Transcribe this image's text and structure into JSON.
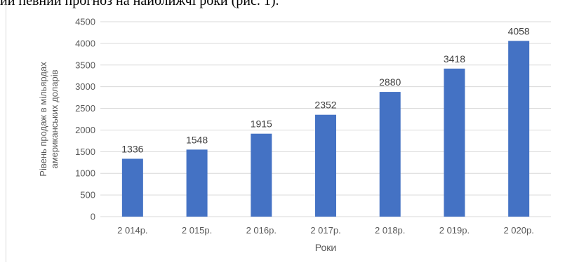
{
  "page": {
    "intro_text": "ий певний прогноз на найближчі роки (рис. 1)."
  },
  "chart_data": {
    "type": "bar",
    "categories": [
      "2 014р.",
      "2 015р.",
      "2 016р.",
      "2 017р.",
      "2 018р.",
      "2 019р.",
      "2 020р."
    ],
    "values": [
      1336,
      1548,
      1915,
      2352,
      2880,
      3418,
      4058
    ],
    "data_labels": [
      "1336",
      "1548",
      "1915",
      "2352",
      "2880",
      "3418",
      "4058"
    ],
    "title": "",
    "xlabel": "Роки",
    "ylabel_lines": [
      "Рівень продаж в мільярдах",
      "американських доларів"
    ],
    "ylim": [
      0,
      4500
    ],
    "yticks": [
      "0",
      "500",
      "1000",
      "1500",
      "2000",
      "2500",
      "3000",
      "3500",
      "4000",
      "4500"
    ],
    "grid": true,
    "legend": "none",
    "bar_color": "#4472c4",
    "grid_color": "#d9d9d9"
  }
}
